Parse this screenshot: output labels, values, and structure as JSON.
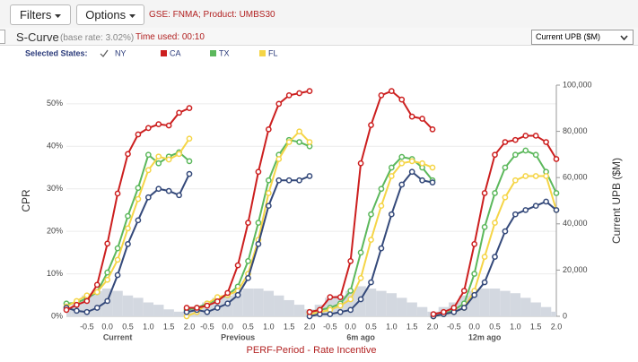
{
  "toolbar": {
    "filters": "Filters",
    "options": "Options",
    "info": "GSE: FNMA; Product: UMBS30"
  },
  "header": {
    "title": "S-Curve",
    "base_rate": "(base rate: 3.02%)",
    "time_used": "Time used: 00:10",
    "dropdown": "Current UPB ($M)"
  },
  "legend_label": "Selected States:",
  "chart_data": {
    "type": "line",
    "x_label": "PERF-Period - Rate Incentive",
    "y_label": "CPR",
    "y2_label": "Current UPB ($M)",
    "x": [
      -1,
      -0.75,
      -0.5,
      -0.25,
      0,
      0.25,
      0.5,
      0.75,
      1,
      1.25,
      1.5,
      1.75,
      2
    ],
    "xlim": [
      -1,
      2
    ],
    "xticks": [
      -0.5,
      {
        "value": 0,
        "label": "0.0"
      },
      0.5,
      {
        "value": 1,
        "label": "1.0"
      },
      1.5,
      {
        "value": 2,
        "label": "2.0"
      }
    ],
    "ylim": [
      0,
      54.4
    ],
    "yticks": [
      {
        "value": 0,
        "label": "0%"
      },
      {
        "value": 10,
        "label": "10%"
      },
      {
        "value": 20,
        "label": "20%"
      },
      {
        "value": 30,
        "label": "30%"
      },
      {
        "value": 40,
        "label": "40%"
      },
      {
        "value": 50,
        "label": "50%"
      }
    ],
    "y2lim": [
      0,
      100000
    ],
    "y2ticks": [
      0,
      {
        "value": 20000,
        "label": "20,000"
      },
      {
        "value": 40000,
        "label": "40,000"
      },
      {
        "value": 60000,
        "label": "60,000"
      },
      {
        "value": 80000,
        "label": "80,000"
      },
      {
        "value": 100000,
        "label": "100,000"
      }
    ],
    "grid": true,
    "upb_color": "#d3d8e0",
    "series": [
      {
        "name": "NY",
        "color": "#34497a"
      },
      {
        "name": "CA",
        "color": "#cc1f1f"
      },
      {
        "name": "TX",
        "color": "#5cb85c"
      },
      {
        "name": "FL",
        "color": "#f5d547"
      }
    ],
    "panels": [
      {
        "label": "Current",
        "lines": [
          [
            2,
            1.3,
            1,
            2,
            3.6,
            9.7,
            17,
            22.6,
            28,
            30,
            29.5,
            28.5,
            33.5
          ],
          [
            1.5,
            2.7,
            3.6,
            7.4,
            17.1,
            28.9,
            38.2,
            42.8,
            44.3,
            45.2,
            44.9,
            47.9,
            49
          ],
          [
            3,
            3.2,
            4.2,
            5.7,
            10.3,
            16,
            23.6,
            30.2,
            38,
            36,
            37.6,
            38.6,
            36.5
          ],
          [
            2.3,
            3.6,
            4.9,
            5.7,
            8.6,
            13.3,
            20.7,
            27.6,
            34.4,
            37.6,
            36.9,
            38.2,
            41.8
          ]
        ],
        "upb": [
          3000,
          6000,
          9000,
          11000,
          12000,
          11000,
          9000,
          8000,
          6000,
          5000,
          3000,
          2000,
          1000
        ]
      },
      {
        "label": "Previous",
        "lines": [
          [
            1,
            1.5,
            1,
            2,
            3,
            5,
            9,
            17,
            26,
            32,
            32,
            32,
            33
          ],
          [
            2,
            2,
            2.5,
            3.5,
            5.5,
            12,
            22,
            34,
            44,
            50,
            52,
            52.5,
            53
          ],
          [
            1.5,
            2,
            3,
            4,
            5,
            7,
            13,
            22,
            32,
            38,
            41.5,
            41,
            40
          ],
          [
            0,
            1,
            3,
            4.5,
            5,
            6,
            10,
            18,
            29,
            37,
            41,
            43.5,
            41
          ]
        ],
        "upb": [
          2000,
          4000,
          6000,
          8000,
          9000,
          11000,
          12000,
          12000,
          11000,
          9000,
          7000,
          5000,
          3000
        ]
      },
      {
        "label": "6m ago",
        "lines": [
          [
            0,
            0.5,
            0.5,
            1,
            1.5,
            4,
            8,
            16,
            24,
            31,
            34,
            32,
            31.5
          ],
          [
            1,
            1.5,
            4.5,
            4.5,
            13,
            36,
            45,
            52,
            53,
            51,
            47,
            46.5,
            44
          ],
          [
            1,
            1.5,
            2,
            3,
            6,
            15,
            24,
            30,
            35,
            37.5,
            37,
            35,
            32
          ],
          [
            0.5,
            1,
            1.5,
            2.5,
            4,
            9,
            18,
            26,
            33,
            36,
            36.5,
            36,
            35
          ]
        ],
        "upb": [
          3000,
          5000,
          8000,
          9000,
          11000,
          13000,
          12000,
          11000,
          10000,
          8000,
          6000,
          4000,
          2000
        ]
      },
      {
        "label": "12m ago",
        "lines": [
          [
            0,
            0.5,
            1,
            2,
            5,
            8,
            14,
            20,
            24,
            25,
            26,
            27,
            25
          ],
          [
            0.5,
            1,
            2,
            6,
            17,
            29,
            38,
            41,
            41.5,
            42.5,
            42.5,
            41,
            37
          ],
          [
            0,
            0.5,
            1.5,
            3,
            10,
            21,
            29,
            35,
            38,
            39,
            38,
            34,
            29
          ],
          [
            0,
            0.5,
            1,
            2,
            6,
            14,
            22,
            28,
            32,
            33,
            33,
            33,
            25
          ]
        ],
        "upb": [
          2000,
          4000,
          6000,
          9000,
          11000,
          12000,
          12000,
          11000,
          10000,
          8000,
          6000,
          4000,
          2000
        ]
      }
    ]
  }
}
